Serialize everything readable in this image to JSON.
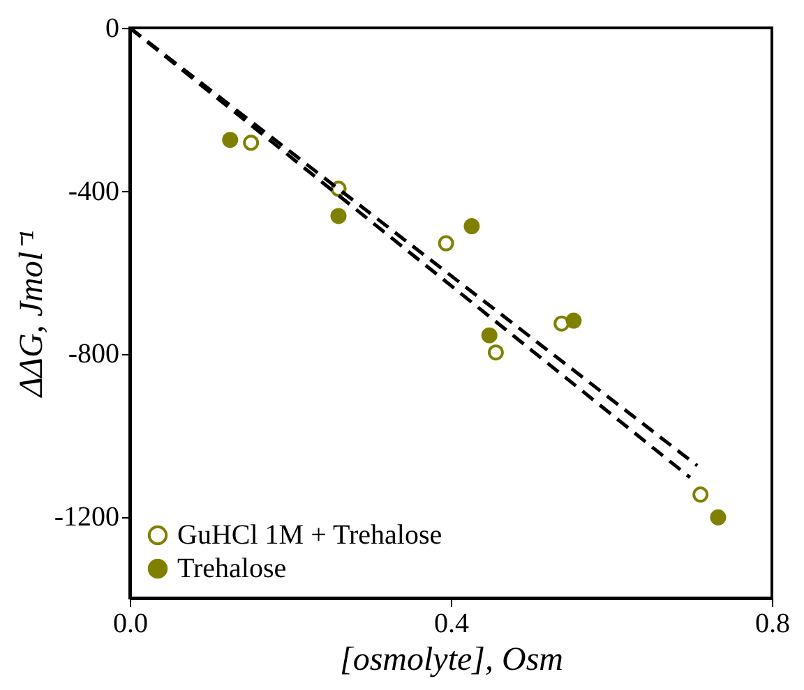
{
  "chart_data": {
    "type": "scatter",
    "xlabel": "[osmolyte], Osm",
    "ylabel": "ΔΔG, Jmol⁻¹",
    "xlim": [
      0,
      0.8
    ],
    "xticks": [
      {
        "value": 0,
        "label": "0.0"
      },
      0.4,
      0.8
    ],
    "ylim": [
      -1400,
      0
    ],
    "yticks": [
      0,
      -400,
      -800,
      -1200
    ],
    "legend": "bottom left",
    "grid": false,
    "series": [
      {
        "name": "GuHCl 1M + Trehalose",
        "marker": "circle",
        "color": "#808000",
        "colors": [
          "#ffffff",
          "#ffffff",
          "#ffffff",
          "#ffffff",
          "#ffffff",
          "#ffffff"
        ],
        "x": [
          0.151,
          0.26,
          0.394,
          0.456,
          0.538,
          0.711
        ],
        "values": [
          -282,
          -395,
          -529,
          -797,
          -726,
          -1146
        ]
      },
      {
        "name": "Trehalose",
        "marker": "circle",
        "color": "#808000",
        "x": [
          0.125,
          0.26,
          0.426,
          0.448,
          0.553,
          0.733
        ],
        "values": [
          -275,
          -462,
          -487,
          -755,
          -719,
          -1202
        ]
      },
      {
        "type": "line",
        "marker": "none",
        "color": "#000000",
        "line_style": "dashed",
        "x": [
          0,
          0.707
        ],
        "values": [
          0,
          -1075
        ]
      },
      {
        "type": "line",
        "marker": "none",
        "color": "#000000",
        "line_style": "dashed",
        "x": [
          0,
          0.698
        ],
        "values": [
          0,
          -1104
        ]
      }
    ]
  }
}
